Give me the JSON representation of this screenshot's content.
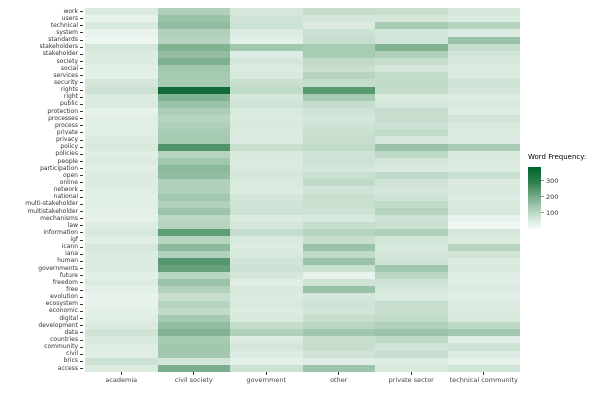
{
  "chart_data": {
    "type": "heatmap",
    "legend_title": "Word Frequency:",
    "legend_ticks": [
      300,
      200,
      100
    ],
    "scale_min": 0,
    "scale_max": 385,
    "color_low": "#f7fcf9",
    "color_high": "#00662f",
    "categories": [
      "academia",
      "civil society",
      "government",
      "other",
      "private sector",
      "technical community"
    ],
    "rows": [
      "work",
      "users",
      "technical",
      "system",
      "standards",
      "stakeholders",
      "stakeholder",
      "society",
      "social",
      "services",
      "security",
      "rights",
      "right",
      "public",
      "protection",
      "processes",
      "process",
      "private",
      "privacy",
      "policy",
      "policies",
      "people",
      "participation",
      "open",
      "online",
      "network",
      "national",
      "multi-stakeholder",
      "multistakeholder",
      "mechanisms",
      "law",
      "information",
      "igf",
      "icann",
      "iana",
      "human",
      "governments",
      "future",
      "freedom",
      "free",
      "evolution",
      "ecosystem",
      "economic",
      "digital",
      "development",
      "data",
      "countries",
      "community",
      "civil",
      "brics",
      "access"
    ],
    "values": [
      [
        50,
        120,
        60,
        90,
        80,
        60
      ],
      [
        30,
        150,
        70,
        60,
        60,
        50
      ],
      [
        55,
        160,
        75,
        50,
        130,
        110
      ],
      [
        25,
        120,
        45,
        75,
        65,
        45
      ],
      [
        20,
        110,
        35,
        90,
        70,
        150
      ],
      [
        60,
        185,
        140,
        130,
        185,
        90
      ],
      [
        50,
        160,
        45,
        130,
        120,
        65
      ],
      [
        45,
        190,
        60,
        95,
        85,
        60
      ],
      [
        40,
        140,
        50,
        80,
        60,
        50
      ],
      [
        35,
        135,
        55,
        110,
        90,
        55
      ],
      [
        60,
        130,
        80,
        90,
        95,
        70
      ],
      [
        75,
        350,
        95,
        240,
        90,
        60
      ],
      [
        45,
        185,
        60,
        130,
        55,
        45
      ],
      [
        50,
        150,
        70,
        90,
        60,
        55
      ],
      [
        30,
        125,
        55,
        70,
        85,
        45
      ],
      [
        40,
        110,
        50,
        60,
        90,
        70
      ],
      [
        35,
        120,
        55,
        70,
        75,
        55
      ],
      [
        40,
        130,
        50,
        80,
        95,
        50
      ],
      [
        45,
        135,
        45,
        85,
        60,
        45
      ],
      [
        55,
        250,
        80,
        95,
        150,
        130
      ],
      [
        40,
        110,
        55,
        70,
        100,
        55
      ],
      [
        45,
        140,
        50,
        75,
        60,
        50
      ],
      [
        40,
        170,
        55,
        60,
        55,
        45
      ],
      [
        50,
        160,
        60,
        80,
        100,
        80
      ],
      [
        45,
        120,
        55,
        100,
        70,
        50
      ],
      [
        40,
        120,
        50,
        70,
        60,
        55
      ],
      [
        35,
        140,
        60,
        80,
        70,
        45
      ],
      [
        40,
        115,
        70,
        80,
        95,
        55
      ],
      [
        35,
        145,
        75,
        70,
        110,
        60
      ],
      [
        30,
        105,
        50,
        55,
        75,
        25
      ],
      [
        45,
        110,
        60,
        90,
        80,
        15
      ],
      [
        55,
        230,
        90,
        110,
        120,
        60
      ],
      [
        40,
        110,
        55,
        85,
        65,
        50
      ],
      [
        60,
        170,
        50,
        150,
        55,
        110
      ],
      [
        45,
        115,
        55,
        95,
        60,
        70
      ],
      [
        50,
        245,
        65,
        150,
        70,
        50
      ],
      [
        45,
        220,
        75,
        80,
        140,
        55
      ],
      [
        35,
        105,
        60,
        25,
        105,
        45
      ],
      [
        45,
        150,
        40,
        70,
        70,
        40
      ],
      [
        35,
        115,
        55,
        150,
        60,
        45
      ],
      [
        25,
        85,
        50,
        60,
        50,
        40
      ],
      [
        30,
        110,
        55,
        70,
        90,
        45
      ],
      [
        35,
        95,
        50,
        65,
        85,
        50
      ],
      [
        40,
        135,
        55,
        85,
        95,
        55
      ],
      [
        50,
        160,
        90,
        105,
        120,
        100
      ],
      [
        70,
        185,
        120,
        140,
        150,
        140
      ],
      [
        55,
        130,
        45,
        85,
        100,
        40
      ],
      [
        45,
        140,
        60,
        85,
        65,
        75
      ],
      [
        40,
        140,
        45,
        70,
        80,
        45
      ],
      [
        75,
        65,
        35,
        40,
        45,
        30
      ],
      [
        50,
        195,
        75,
        145,
        55,
        70
      ]
    ]
  }
}
